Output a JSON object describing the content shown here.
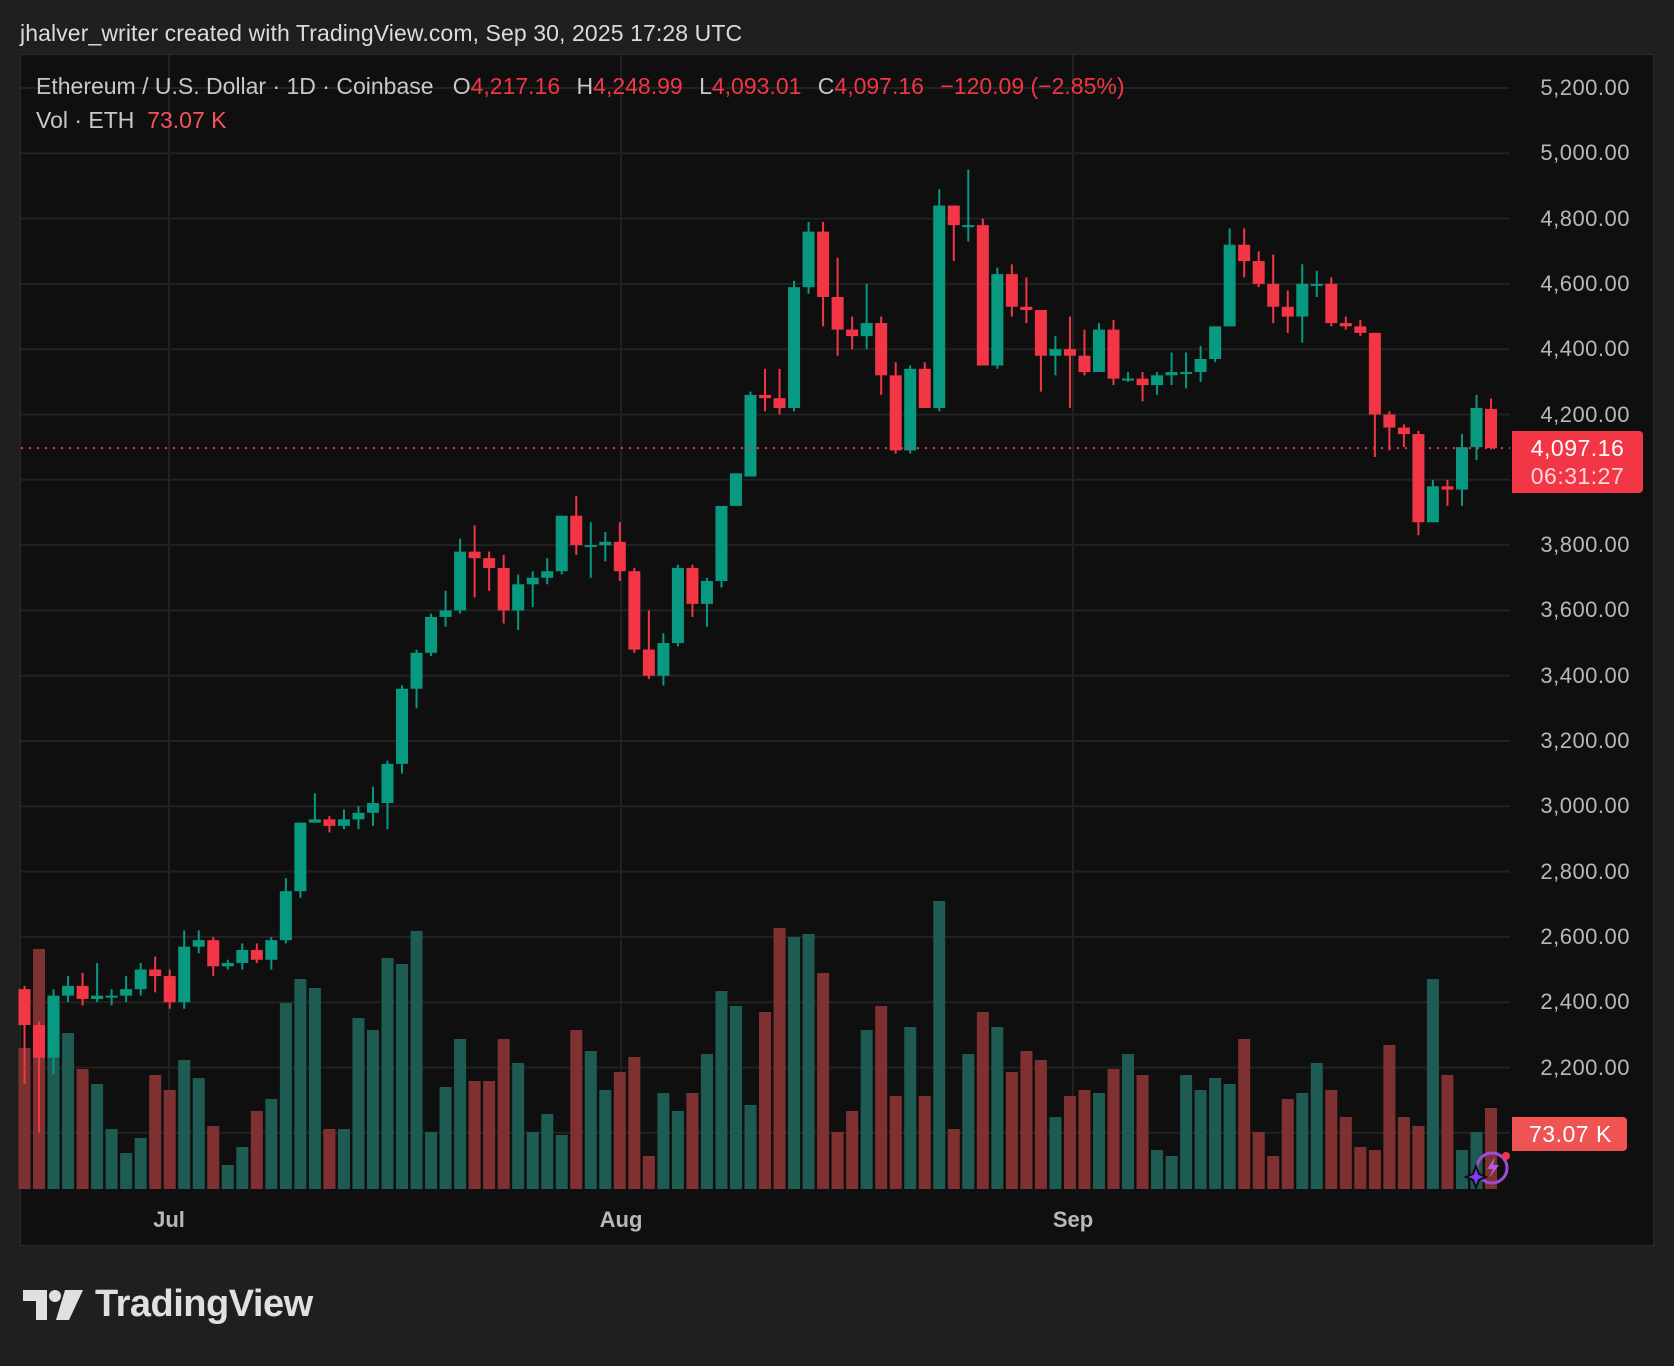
{
  "credit": "jhalver_writer created with TradingView.com, Sep 30, 2025 17:28 UTC",
  "legend": {
    "symbol": "Ethereum / U.S. Dollar · 1D · Coinbase",
    "o_label": "O",
    "o_value": "4,217.16",
    "h_label": "H",
    "h_value": "4,248.99",
    "l_label": "L",
    "l_value": "4,093.01",
    "c_label": "C",
    "c_value": "4,097.16",
    "change": "−120.09 (−2.85%)",
    "vol_label": "Vol · ETH",
    "vol_value": "73.07 K"
  },
  "price_axis": {
    "labels": [
      "5,200.00",
      "5,000.00",
      "4,800.00",
      "4,600.00",
      "4,400.00",
      "4,200.00",
      "3,800.00",
      "3,600.00",
      "3,400.00",
      "3,200.00",
      "3,000.00",
      "2,800.00",
      "2,600.00",
      "2,400.00",
      "2,200.00"
    ],
    "last_price": "4,097.16",
    "countdown": "06:31:27",
    "volume_badge": "73.07 K"
  },
  "time_axis": {
    "labels": [
      {
        "text": "Jul",
        "x": 169
      },
      {
        "text": "Aug",
        "x": 621
      },
      {
        "text": "Sep",
        "x": 1073
      }
    ]
  },
  "branding": {
    "logo_text": "TradingView"
  },
  "colors": {
    "up": "#089981",
    "down": "#f23645",
    "vol_up": "#1e5b52",
    "vol_down": "#7f3132",
    "grid": "#222222",
    "background": "#0f0f0f"
  },
  "chart_data": {
    "type": "candlestick",
    "title": "Ethereum / U.S. Dollar · 1D · Coinbase",
    "xlabel": "",
    "ylabel": "USD",
    "ylim": [
      2000,
      5200
    ],
    "x_ticks": [
      "Jul",
      "Aug",
      "Sep"
    ],
    "y_ticks": [
      5200,
      5000,
      4800,
      4600,
      4400,
      4200,
      3800,
      3600,
      3400,
      3200,
      3000,
      2800,
      2600,
      2400,
      2200
    ],
    "last": {
      "open": 4217.16,
      "high": 4248.99,
      "low": 4093.01,
      "close": 4097.16,
      "change": -120.09,
      "change_pct": -2.85,
      "volume_k": 73.07
    },
    "candles": [
      [
        2440,
        2450,
        2150,
        2330
      ],
      [
        2330,
        2340,
        2000,
        2230
      ],
      [
        2230,
        2440,
        2180,
        2420
      ],
      [
        2420,
        2480,
        2400,
        2450
      ],
      [
        2450,
        2490,
        2390,
        2410
      ],
      [
        2410,
        2520,
        2400,
        2420
      ],
      [
        2420,
        2440,
        2390,
        2420
      ],
      [
        2420,
        2480,
        2400,
        2440
      ],
      [
        2440,
        2520,
        2420,
        2500
      ],
      [
        2500,
        2540,
        2430,
        2480
      ],
      [
        2480,
        2500,
        2380,
        2400
      ],
      [
        2400,
        2620,
        2380,
        2570
      ],
      [
        2570,
        2620,
        2550,
        2590
      ],
      [
        2590,
        2600,
        2480,
        2510
      ],
      [
        2510,
        2530,
        2500,
        2520
      ],
      [
        2520,
        2580,
        2500,
        2560
      ],
      [
        2560,
        2580,
        2520,
        2530
      ],
      [
        2530,
        2600,
        2500,
        2590
      ],
      [
        2590,
        2780,
        2580,
        2740
      ],
      [
        2740,
        2940,
        2720,
        2950
      ],
      [
        2950,
        3040,
        2950,
        2960
      ],
      [
        2960,
        2970,
        2920,
        2940
      ],
      [
        2940,
        2990,
        2930,
        2960
      ],
      [
        2960,
        3000,
        2930,
        2980
      ],
      [
        2980,
        3060,
        2940,
        3010
      ],
      [
        3010,
        3140,
        2930,
        3130
      ],
      [
        3130,
        3370,
        3100,
        3360
      ],
      [
        3360,
        3480,
        3300,
        3470
      ],
      [
        3470,
        3590,
        3460,
        3580
      ],
      [
        3580,
        3660,
        3550,
        3600
      ],
      [
        3600,
        3820,
        3590,
        3780
      ],
      [
        3780,
        3860,
        3640,
        3760
      ],
      [
        3760,
        3780,
        3660,
        3730
      ],
      [
        3730,
        3770,
        3560,
        3600
      ],
      [
        3600,
        3710,
        3540,
        3680
      ],
      [
        3680,
        3720,
        3610,
        3700
      ],
      [
        3700,
        3760,
        3680,
        3720
      ],
      [
        3720,
        3890,
        3710,
        3890
      ],
      [
        3890,
        3950,
        3770,
        3800
      ],
      [
        3800,
        3870,
        3700,
        3800
      ],
      [
        3800,
        3840,
        3750,
        3810
      ],
      [
        3810,
        3870,
        3690,
        3720
      ],
      [
        3720,
        3730,
        3470,
        3480
      ],
      [
        3480,
        3600,
        3390,
        3400
      ],
      [
        3400,
        3530,
        3370,
        3500
      ],
      [
        3500,
        3740,
        3490,
        3730
      ],
      [
        3730,
        3740,
        3580,
        3620
      ],
      [
        3620,
        3700,
        3550,
        3690
      ],
      [
        3690,
        3910,
        3670,
        3920
      ],
      [
        3920,
        4020,
        3920,
        4020
      ],
      [
        4010,
        4270,
        4010,
        4260
      ],
      [
        4260,
        4340,
        4210,
        4250
      ],
      [
        4250,
        4340,
        4200,
        4220
      ],
      [
        4220,
        4610,
        4210,
        4590
      ],
      [
        4590,
        4790,
        4570,
        4760
      ],
      [
        4760,
        4790,
        4470,
        4560
      ],
      [
        4560,
        4680,
        4380,
        4460
      ],
      [
        4460,
        4500,
        4400,
        4440
      ],
      [
        4440,
        4600,
        4400,
        4480
      ],
      [
        4480,
        4500,
        4260,
        4320
      ],
      [
        4320,
        4360,
        4080,
        4090
      ],
      [
        4090,
        4350,
        4080,
        4340
      ],
      [
        4340,
        4360,
        4220,
        4220
      ],
      [
        4220,
        4890,
        4210,
        4840
      ],
      [
        4840,
        4840,
        4670,
        4780
      ],
      [
        4780,
        4950,
        4730,
        4780
      ],
      [
        4780,
        4800,
        4370,
        4350
      ],
      [
        4350,
        4650,
        4340,
        4630
      ],
      [
        4630,
        4660,
        4500,
        4530
      ],
      [
        4530,
        4620,
        4480,
        4520
      ],
      [
        4520,
        4520,
        4270,
        4380
      ],
      [
        4380,
        4440,
        4320,
        4400
      ],
      [
        4400,
        4500,
        4220,
        4380
      ],
      [
        4380,
        4460,
        4320,
        4330
      ],
      [
        4330,
        4480,
        4330,
        4460
      ],
      [
        4460,
        4490,
        4290,
        4310
      ],
      [
        4310,
        4330,
        4300,
        4310
      ],
      [
        4310,
        4330,
        4240,
        4290
      ],
      [
        4290,
        4330,
        4260,
        4320
      ],
      [
        4320,
        4390,
        4290,
        4330
      ],
      [
        4330,
        4390,
        4280,
        4330
      ],
      [
        4330,
        4410,
        4300,
        4370
      ],
      [
        4370,
        4470,
        4360,
        4470
      ],
      [
        4470,
        4770,
        4470,
        4720
      ],
      [
        4720,
        4770,
        4620,
        4670
      ],
      [
        4670,
        4700,
        4590,
        4600
      ],
      [
        4600,
        4690,
        4480,
        4530
      ],
      [
        4530,
        4580,
        4450,
        4500
      ],
      [
        4500,
        4660,
        4420,
        4600
      ],
      [
        4600,
        4640,
        4560,
        4600
      ],
      [
        4600,
        4620,
        4470,
        4480
      ],
      [
        4480,
        4500,
        4460,
        4470
      ],
      [
        4470,
        4490,
        4440,
        4450
      ],
      [
        4450,
        4450,
        4070,
        4200
      ],
      [
        4200,
        4210,
        4090,
        4160
      ],
      [
        4160,
        4170,
        4100,
        4140
      ],
      [
        4140,
        4150,
        3830,
        3870
      ],
      [
        3870,
        4000,
        3870,
        3980
      ],
      [
        3980,
        4000,
        3920,
        3970
      ],
      [
        3970,
        4140,
        3920,
        4100
      ],
      [
        4100,
        4260,
        4060,
        4220
      ],
      [
        4217.16,
        4248.99,
        4093.01,
        4097.16
      ]
    ],
    "volume_rel": [
      0.47,
      0.8,
      0.62,
      0.52,
      0.4,
      0.35,
      0.2,
      0.12,
      0.17,
      0.38,
      0.33,
      0.43,
      0.37,
      0.21,
      0.08,
      0.14,
      0.26,
      0.3,
      0.62,
      0.7,
      0.67,
      0.2,
      0.2,
      0.57,
      0.53,
      0.77,
      0.75,
      0.86,
      0.19,
      0.34,
      0.5,
      0.36,
      0.36,
      0.5,
      0.42,
      0.19,
      0.25,
      0.18,
      0.53,
      0.46,
      0.33,
      0.39,
      0.44,
      0.11,
      0.32,
      0.26,
      0.32,
      0.45,
      0.66,
      0.61,
      0.28,
      0.59,
      0.87,
      0.84,
      0.85,
      0.72,
      0.19,
      0.26,
      0.53,
      0.61,
      0.31,
      0.54,
      0.31,
      0.96,
      0.2,
      0.45,
      0.59,
      0.54,
      0.39,
      0.46,
      0.43,
      0.24,
      0.31,
      0.33,
      0.32,
      0.4,
      0.45,
      0.38,
      0.13,
      0.11,
      0.38,
      0.33,
      0.37,
      0.35,
      0.5,
      0.19,
      0.11,
      0.3,
      0.32,
      0.42,
      0.33,
      0.24,
      0.14,
      0.13,
      0.48,
      0.24,
      0.21,
      0.7,
      0.38,
      0.13,
      0.19,
      0.27
    ]
  }
}
